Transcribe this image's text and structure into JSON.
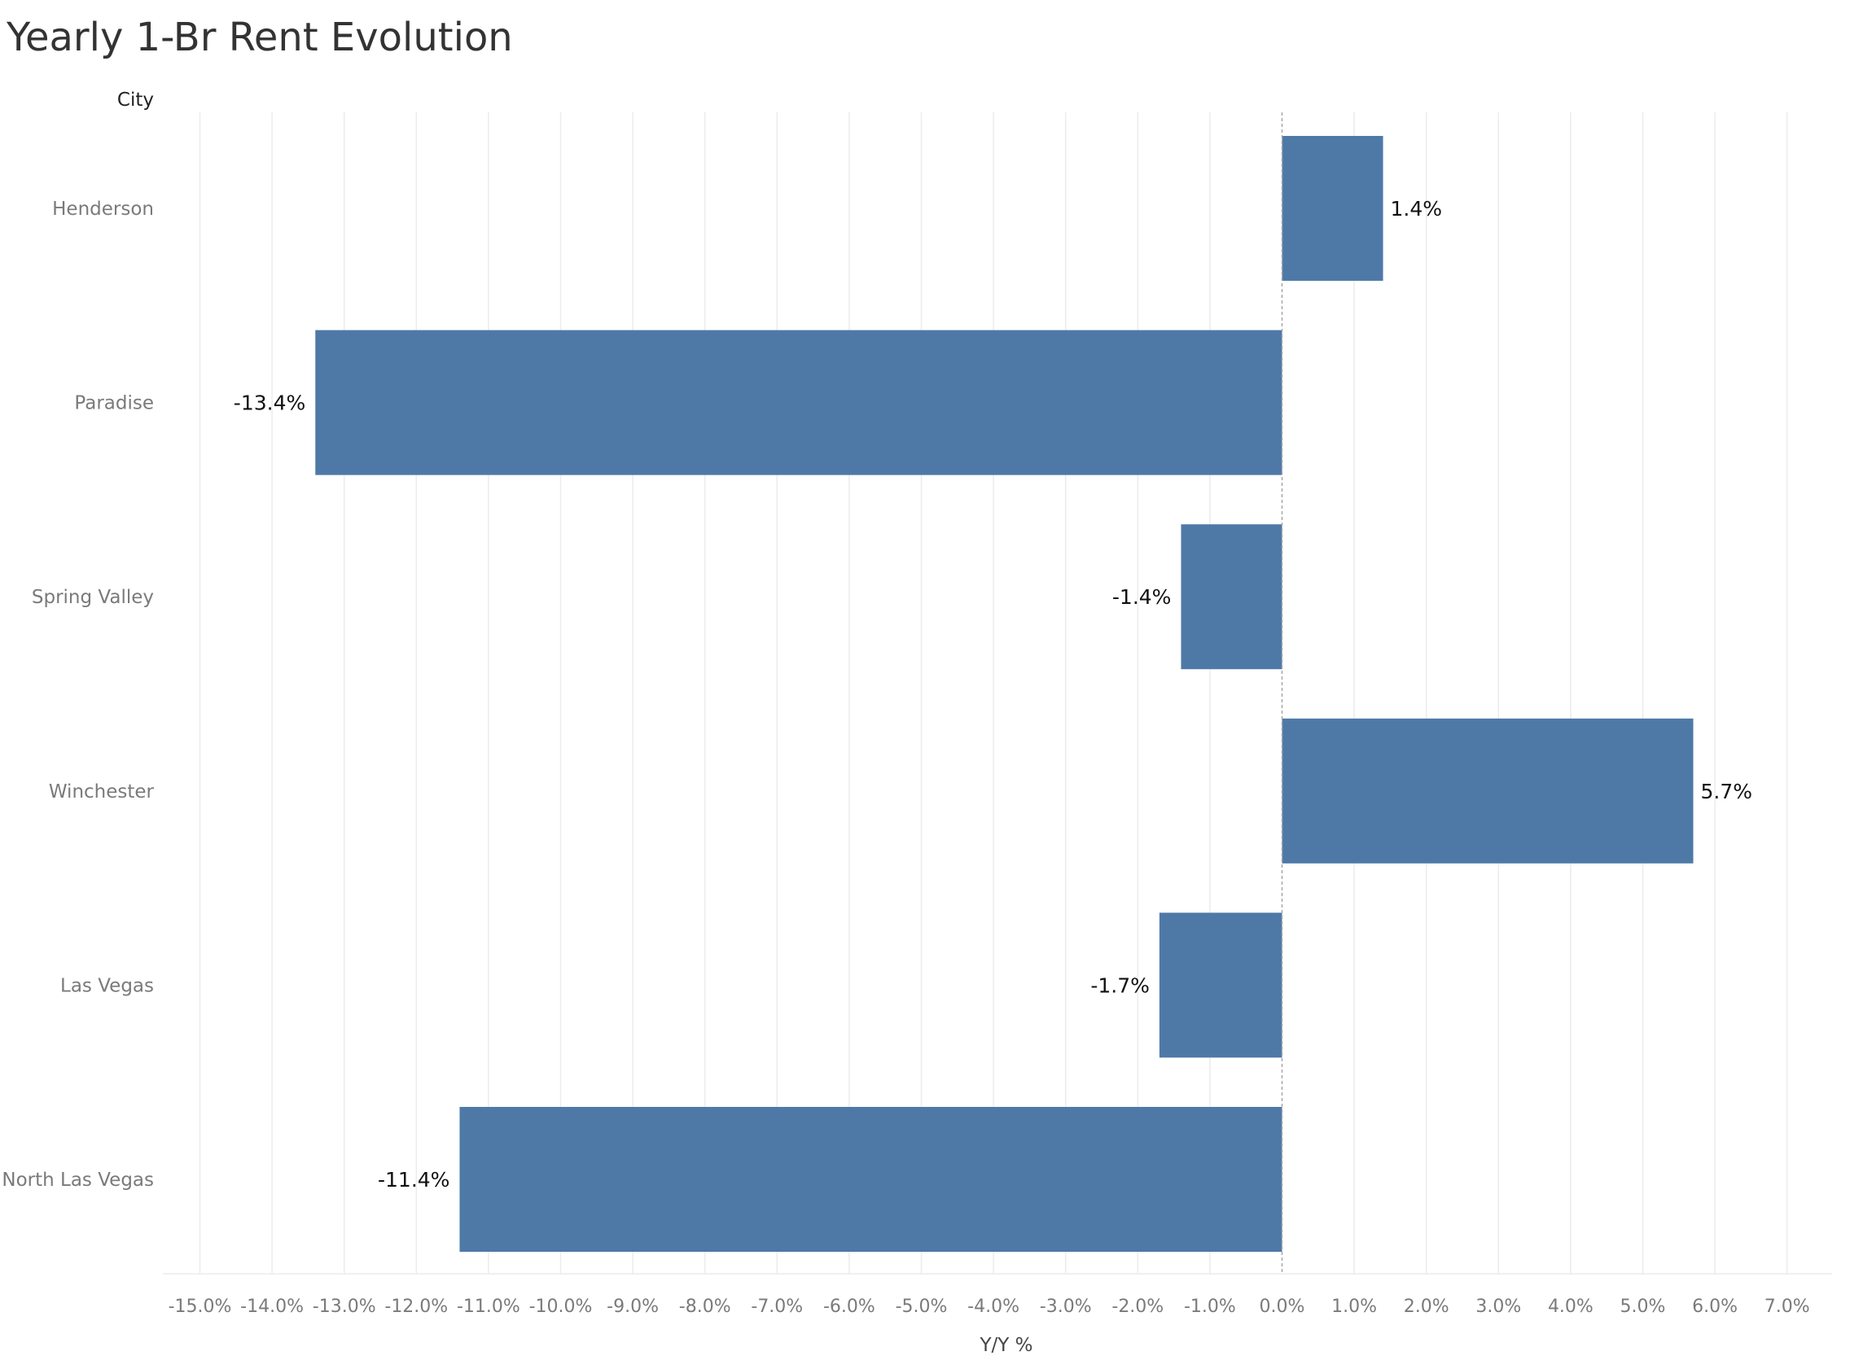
{
  "chart_data": {
    "type": "bar",
    "orientation": "horizontal",
    "title": "Yearly 1-Br Rent Evolution",
    "ylabel": "City",
    "xlabel": "Y/Y %",
    "categories": [
      "Henderson",
      "Paradise",
      "Spring Valley",
      "Winchester",
      "Las Vegas",
      "North Las Vegas"
    ],
    "values": [
      1.4,
      -13.4,
      -1.4,
      5.7,
      -1.7,
      -11.4
    ],
    "data_labels": [
      "1.4%",
      "-13.4%",
      "-1.4%",
      "5.7%",
      "-1.7%",
      "-11.4%"
    ],
    "xlim": [
      -15,
      7
    ],
    "xticks": [
      -15,
      -14,
      -13,
      -12,
      -11,
      -10,
      -9,
      -8,
      -7,
      -6,
      -5,
      -4,
      -3,
      -2,
      -1,
      0,
      1,
      2,
      3,
      4,
      5,
      6,
      7
    ],
    "xtick_labels": [
      "-15.0%",
      "-14.0%",
      "-13.0%",
      "-12.0%",
      "-11.0%",
      "-10.0%",
      "-9.0%",
      "-8.0%",
      "-7.0%",
      "-6.0%",
      "-5.0%",
      "-4.0%",
      "-3.0%",
      "-2.0%",
      "-1.0%",
      "0.0%",
      "1.0%",
      "2.0%",
      "3.0%",
      "4.0%",
      "5.0%",
      "6.0%",
      "7.0%"
    ],
    "grid": true,
    "legend": "none",
    "colors": {
      "bar": "#4e79a7",
      "grid": "#ececec",
      "zero_line": "#a8a8a8"
    }
  }
}
